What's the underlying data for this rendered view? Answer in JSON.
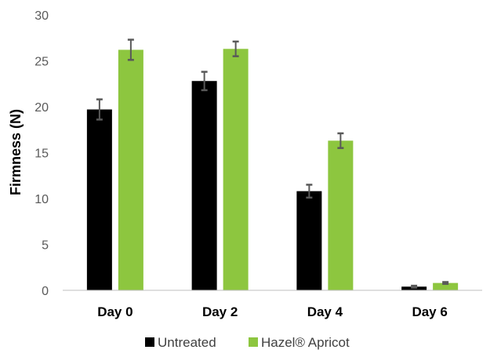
{
  "chart_data": {
    "type": "bar",
    "title": "",
    "xlabel": "",
    "ylabel": "Firmness (N)",
    "ylim": [
      0,
      30
    ],
    "yticks": [
      0,
      5,
      10,
      15,
      20,
      25,
      30
    ],
    "grid": false,
    "legend_position": "bottom",
    "categories": [
      "Day 0",
      "Day 2",
      "Day 4",
      "Day 6"
    ],
    "series": [
      {
        "name": "Untreated",
        "color": "#000000",
        "values": [
          19.7,
          22.8,
          10.8,
          0.4
        ],
        "errors": [
          1.1,
          1.0,
          0.7,
          0.1
        ]
      },
      {
        "name": "Hazel® Apricot",
        "color": "#8DC63F",
        "values": [
          26.2,
          26.3,
          16.3,
          0.8
        ],
        "errors": [
          1.1,
          0.8,
          0.8,
          0.1
        ]
      }
    ],
    "error_bar_color": "#595959",
    "axis_color": "#BFBFBF"
  }
}
